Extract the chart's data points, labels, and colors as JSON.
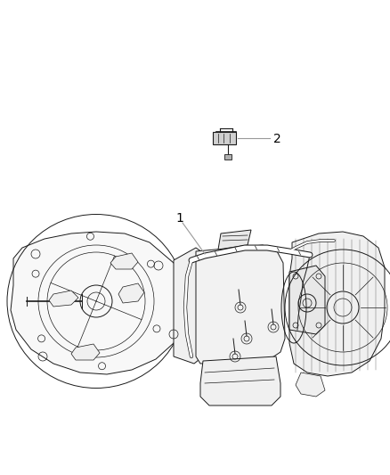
{
  "background_color": "#ffffff",
  "line_color": "#1a1a1a",
  "gray_color": "#888888",
  "light_gray": "#cccccc",
  "figure_width": 4.38,
  "figure_height": 5.33,
  "dpi": 100,
  "label_1": "1",
  "label_2": "2",
  "callout_color": "#999999",
  "text_color": "#000000",
  "font_size": 10
}
